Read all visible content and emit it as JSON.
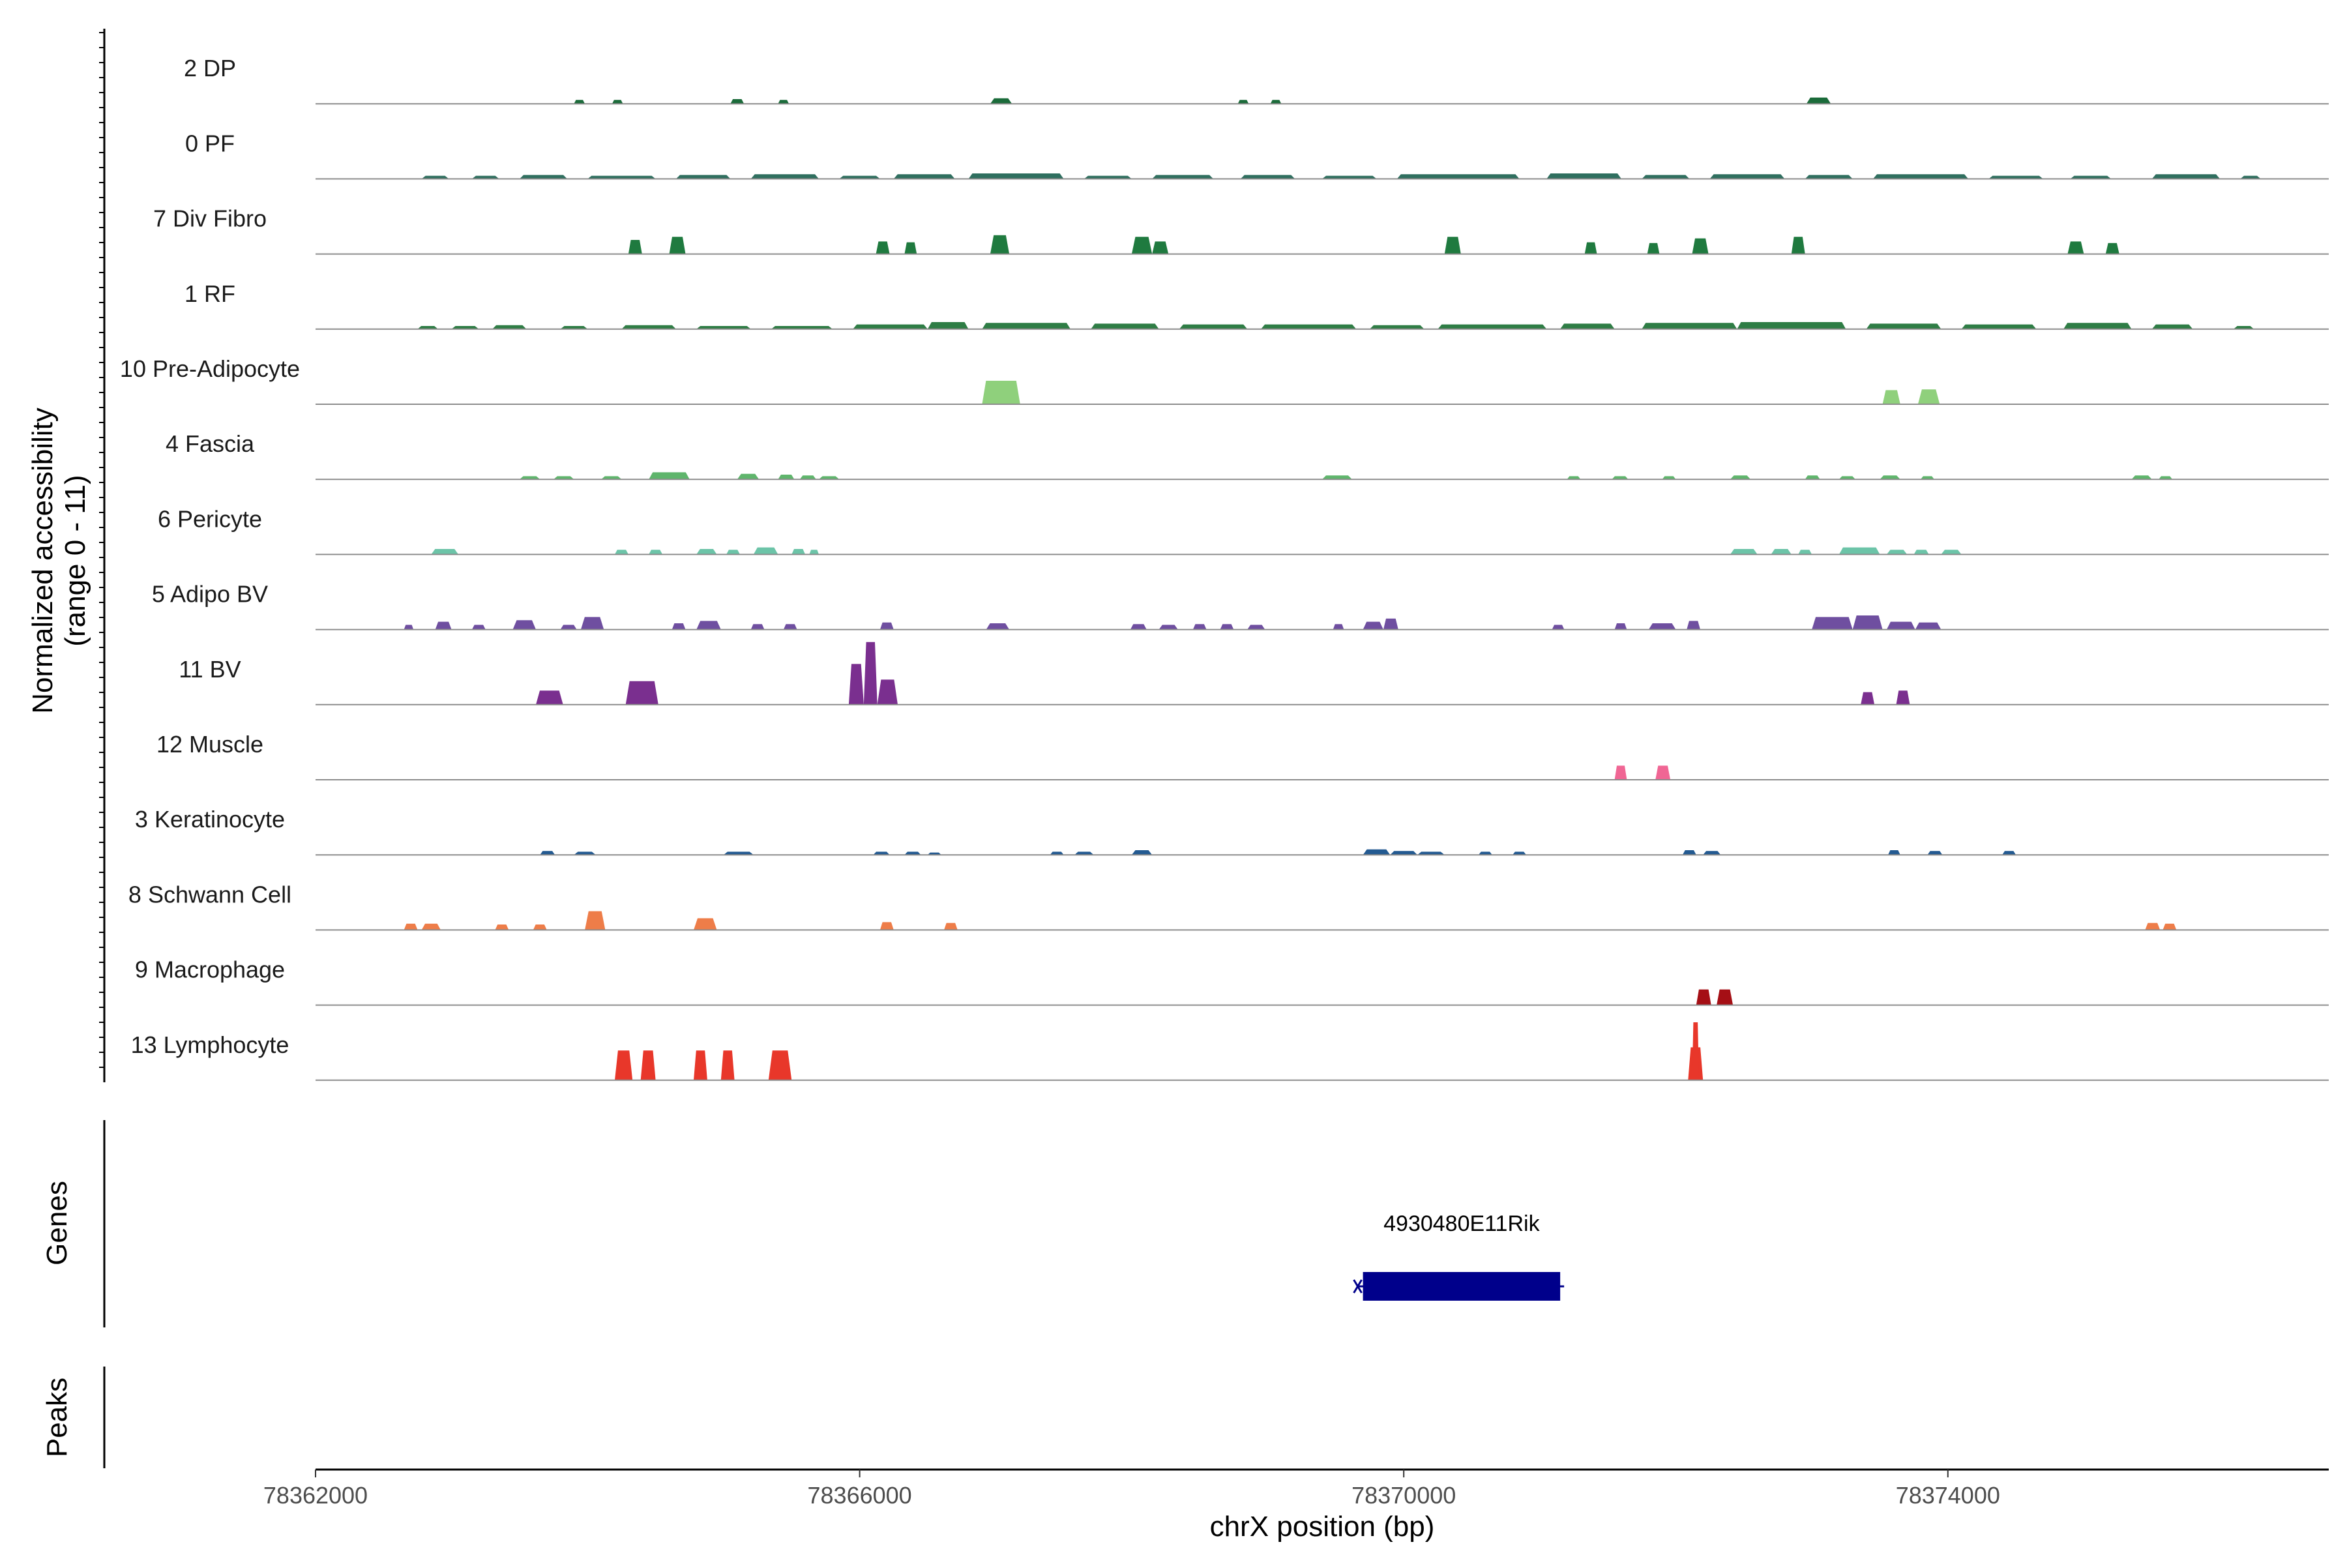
{
  "chart_data": {
    "type": "area",
    "xlabel": "chrX position (bp)",
    "ylabel_line1": "Normalized accessibility",
    "ylabel_line2": "(range 0 - 11)",
    "yrange": [
      0,
      11
    ],
    "xlim": [
      78362000,
      78376800
    ],
    "x_ticks": [
      78362000,
      78366000,
      78370000,
      78374000
    ],
    "x_tick_labels": [
      "78362000",
      "78366000",
      "78370000",
      "78374000"
    ],
    "panel_labels": {
      "genes": "Genes",
      "peaks": "Peaks"
    },
    "tracks": [
      {
        "name": "2 DP",
        "color": "#1b6b3a",
        "peaks": [
          [
            78363900,
            78363980,
            0.25
          ],
          [
            78364180,
            78364260,
            0.25
          ],
          [
            78365050,
            78365150,
            0.3
          ],
          [
            78365400,
            78365480,
            0.25
          ],
          [
            78366960,
            78367120,
            0.35
          ],
          [
            78368780,
            78368860,
            0.25
          ],
          [
            78369020,
            78369100,
            0.25
          ],
          [
            78372960,
            78373140,
            0.4
          ]
        ]
      },
      {
        "name": "0 PF",
        "color": "#2f6f5f",
        "peaks": [
          [
            78362780,
            78362980,
            0.2
          ],
          [
            78363150,
            78363350,
            0.2
          ],
          [
            78363500,
            78363850,
            0.25
          ],
          [
            78364000,
            78364500,
            0.2
          ],
          [
            78364650,
            78365050,
            0.25
          ],
          [
            78365200,
            78365700,
            0.3
          ],
          [
            78365850,
            78366150,
            0.2
          ],
          [
            78366250,
            78366700,
            0.3
          ],
          [
            78366800,
            78367500,
            0.35
          ],
          [
            78367650,
            78368000,
            0.2
          ],
          [
            78368150,
            78368600,
            0.25
          ],
          [
            78368800,
            78369200,
            0.25
          ],
          [
            78369400,
            78369800,
            0.2
          ],
          [
            78369950,
            78370850,
            0.3
          ],
          [
            78371050,
            78371600,
            0.35
          ],
          [
            78371750,
            78372100,
            0.25
          ],
          [
            78372250,
            78372800,
            0.3
          ],
          [
            78372950,
            78373300,
            0.25
          ],
          [
            78373450,
            78374150,
            0.3
          ],
          [
            78374300,
            78374700,
            0.2
          ],
          [
            78374900,
            78375200,
            0.2
          ],
          [
            78375500,
            78376000,
            0.3
          ],
          [
            78376150,
            78376300,
            0.2
          ]
        ]
      },
      {
        "name": "7 Div Fibro",
        "color": "#1f7a3f",
        "peaks": [
          [
            78364300,
            78364400,
            0.9
          ],
          [
            78364600,
            78364720,
            1.1
          ],
          [
            78366120,
            78366220,
            0.8
          ],
          [
            78366330,
            78366420,
            0.75
          ],
          [
            78366960,
            78367100,
            1.2
          ],
          [
            78368000,
            78368150,
            1.1
          ],
          [
            78368150,
            78368270,
            0.8
          ],
          [
            78370300,
            78370420,
            1.1
          ],
          [
            78371330,
            78371420,
            0.75
          ],
          [
            78371790,
            78371880,
            0.7
          ],
          [
            78372120,
            78372240,
            1.0
          ],
          [
            78372850,
            78372950,
            1.1
          ],
          [
            78374880,
            78375000,
            0.8
          ],
          [
            78375160,
            78375260,
            0.7
          ]
        ]
      },
      {
        "name": "1 RF",
        "color": "#2e7d45",
        "peaks": [
          [
            78362750,
            78362900,
            0.2
          ],
          [
            78363000,
            78363200,
            0.2
          ],
          [
            78363300,
            78363550,
            0.25
          ],
          [
            78363800,
            78364000,
            0.2
          ],
          [
            78364250,
            78364650,
            0.25
          ],
          [
            78364800,
            78365200,
            0.2
          ],
          [
            78365350,
            78365800,
            0.2
          ],
          [
            78365950,
            78366500,
            0.3
          ],
          [
            78366500,
            78366800,
            0.45
          ],
          [
            78366900,
            78367550,
            0.4
          ],
          [
            78367700,
            78368200,
            0.35
          ],
          [
            78368350,
            78368850,
            0.3
          ],
          [
            78368950,
            78369650,
            0.3
          ],
          [
            78369750,
            78370150,
            0.25
          ],
          [
            78370250,
            78371050,
            0.3
          ],
          [
            78371150,
            78371550,
            0.35
          ],
          [
            78371750,
            78372450,
            0.4
          ],
          [
            78372450,
            78373250,
            0.45
          ],
          [
            78373400,
            78373950,
            0.35
          ],
          [
            78374100,
            78374650,
            0.3
          ],
          [
            78374850,
            78375350,
            0.4
          ],
          [
            78375500,
            78375800,
            0.3
          ],
          [
            78376100,
            78376250,
            0.2
          ]
        ]
      },
      {
        "name": "10 Pre-Adipocyte",
        "color": "#8fd07c",
        "peaks": [
          [
            78366900,
            78367180,
            1.5
          ],
          [
            78373520,
            78373650,
            0.9
          ],
          [
            78373780,
            78373940,
            0.95
          ]
        ]
      },
      {
        "name": "4 Fascia",
        "color": "#5fb56c",
        "peaks": [
          [
            78363500,
            78363650,
            0.2
          ],
          [
            78363750,
            78363900,
            0.2
          ],
          [
            78364100,
            78364250,
            0.2
          ],
          [
            78364450,
            78364750,
            0.45
          ],
          [
            78365100,
            78365260,
            0.35
          ],
          [
            78365400,
            78365520,
            0.3
          ],
          [
            78365560,
            78365680,
            0.25
          ],
          [
            78365700,
            78365850,
            0.2
          ],
          [
            78369400,
            78369620,
            0.25
          ],
          [
            78371200,
            78371300,
            0.2
          ],
          [
            78371530,
            78371650,
            0.2
          ],
          [
            78371900,
            78372000,
            0.2
          ],
          [
            78372400,
            78372550,
            0.25
          ],
          [
            78372950,
            78373060,
            0.25
          ],
          [
            78373200,
            78373320,
            0.2
          ],
          [
            78373500,
            78373650,
            0.25
          ],
          [
            78373800,
            78373900,
            0.2
          ],
          [
            78375350,
            78375500,
            0.25
          ],
          [
            78375550,
            78375650,
            0.2
          ]
        ]
      },
      {
        "name": "6 Pericyte",
        "color": "#6cc4a8",
        "peaks": [
          [
            78362850,
            78363050,
            0.35
          ],
          [
            78364200,
            78364300,
            0.3
          ],
          [
            78364450,
            78364550,
            0.3
          ],
          [
            78364800,
            78364950,
            0.35
          ],
          [
            78365020,
            78365120,
            0.3
          ],
          [
            78365220,
            78365400,
            0.45
          ],
          [
            78365500,
            78365600,
            0.35
          ],
          [
            78365630,
            78365700,
            0.3
          ],
          [
            78372400,
            78372600,
            0.35
          ],
          [
            78372700,
            78372850,
            0.35
          ],
          [
            78372900,
            78373000,
            0.3
          ],
          [
            78373200,
            78373500,
            0.45
          ],
          [
            78373550,
            78373700,
            0.3
          ],
          [
            78373750,
            78373860,
            0.3
          ],
          [
            78373950,
            78374100,
            0.3
          ]
        ]
      },
      {
        "name": "5 Adipo BV",
        "color": "#6f4fa0",
        "peaks": [
          [
            78362650,
            78362720,
            0.3
          ],
          [
            78362880,
            78363000,
            0.5
          ],
          [
            78363150,
            78363250,
            0.3
          ],
          [
            78363450,
            78363620,
            0.6
          ],
          [
            78363800,
            78363920,
            0.3
          ],
          [
            78363950,
            78364120,
            0.8
          ],
          [
            78364620,
            78364720,
            0.4
          ],
          [
            78364800,
            78364980,
            0.55
          ],
          [
            78365200,
            78365300,
            0.35
          ],
          [
            78365440,
            78365540,
            0.35
          ],
          [
            78366150,
            78366250,
            0.45
          ],
          [
            78366930,
            78367100,
            0.4
          ],
          [
            78367990,
            78368110,
            0.35
          ],
          [
            78368200,
            78368340,
            0.3
          ],
          [
            78368450,
            78368550,
            0.35
          ],
          [
            78368650,
            78368750,
            0.35
          ],
          [
            78368850,
            78368980,
            0.3
          ],
          [
            78369480,
            78369560,
            0.35
          ],
          [
            78369700,
            78369850,
            0.5
          ],
          [
            78369850,
            78369960,
            0.7
          ],
          [
            78371090,
            78371180,
            0.3
          ],
          [
            78371550,
            78371640,
            0.4
          ],
          [
            78371800,
            78372000,
            0.4
          ],
          [
            78372080,
            78372180,
            0.55
          ],
          [
            78373000,
            78373300,
            0.8
          ],
          [
            78373300,
            78373520,
            0.9
          ],
          [
            78373550,
            78373760,
            0.5
          ],
          [
            78373760,
            78373950,
            0.45
          ]
        ]
      },
      {
        "name": "11 BV",
        "color": "#7a2f8f",
        "peaks": [
          [
            78363620,
            78363820,
            0.9
          ],
          [
            78364280,
            78364520,
            1.5
          ],
          [
            78365920,
            78366030,
            2.6
          ],
          [
            78366030,
            78366130,
            4.0
          ],
          [
            78366130,
            78366280,
            1.6
          ],
          [
            78373360,
            78373460,
            0.8
          ],
          [
            78373620,
            78373720,
            0.9
          ]
        ]
      },
      {
        "name": "12 Muscle",
        "color": "#f06694",
        "peaks": [
          [
            78371550,
            78371640,
            0.9
          ],
          [
            78371850,
            78371960,
            0.9
          ]
        ]
      },
      {
        "name": "3 Keratinocyte",
        "color": "#235a91",
        "peaks": [
          [
            78363650,
            78363760,
            0.25
          ],
          [
            78363900,
            78364060,
            0.2
          ],
          [
            78365000,
            78365220,
            0.2
          ],
          [
            78366100,
            78366220,
            0.2
          ],
          [
            78366330,
            78366450,
            0.2
          ],
          [
            78366500,
            78366600,
            0.15
          ],
          [
            78367400,
            78367500,
            0.2
          ],
          [
            78367580,
            78367720,
            0.2
          ],
          [
            78368000,
            78368150,
            0.3
          ],
          [
            78369700,
            78369900,
            0.35
          ],
          [
            78369900,
            78370100,
            0.25
          ],
          [
            78370100,
            78370300,
            0.2
          ],
          [
            78370550,
            78370650,
            0.2
          ],
          [
            78370800,
            78370900,
            0.2
          ],
          [
            78372050,
            78372150,
            0.3
          ],
          [
            78372200,
            78372330,
            0.25
          ],
          [
            78373560,
            78373650,
            0.3
          ],
          [
            78373850,
            78373960,
            0.25
          ],
          [
            78374400,
            78374500,
            0.25
          ]
        ]
      },
      {
        "name": "8 Schwann Cell",
        "color": "#ee7d49",
        "peaks": [
          [
            78362650,
            78362750,
            0.4
          ],
          [
            78362780,
            78362920,
            0.4
          ],
          [
            78363320,
            78363420,
            0.35
          ],
          [
            78363600,
            78363700,
            0.35
          ],
          [
            78363980,
            78364130,
            1.2
          ],
          [
            78364780,
            78364950,
            0.75
          ],
          [
            78366150,
            78366250,
            0.5
          ],
          [
            78366620,
            78366720,
            0.45
          ],
          [
            78375450,
            78375560,
            0.45
          ],
          [
            78375580,
            78375680,
            0.4
          ]
        ]
      },
      {
        "name": "9 Macrophage",
        "color": "#a50f15",
        "peaks": [
          [
            78372150,
            78372260,
            1.0
          ],
          [
            78372300,
            78372420,
            1.0
          ]
        ]
      },
      {
        "name": "13 Lymphocyte",
        "color": "#e8372a",
        "peaks": [
          [
            78364200,
            78364330,
            1.9
          ],
          [
            78364390,
            78364500,
            1.9
          ],
          [
            78364780,
            78364880,
            1.9
          ],
          [
            78364980,
            78365080,
            1.9
          ],
          [
            78365330,
            78365500,
            1.9
          ],
          [
            78372090,
            78372200,
            2.1
          ],
          [
            78372120,
            78372170,
            3.7
          ]
        ]
      }
    ],
    "genes": [
      {
        "name": "4930480E11Rik",
        "start": 78369700,
        "end": 78371150,
        "strand": "-"
      }
    ],
    "peaks_track": []
  }
}
